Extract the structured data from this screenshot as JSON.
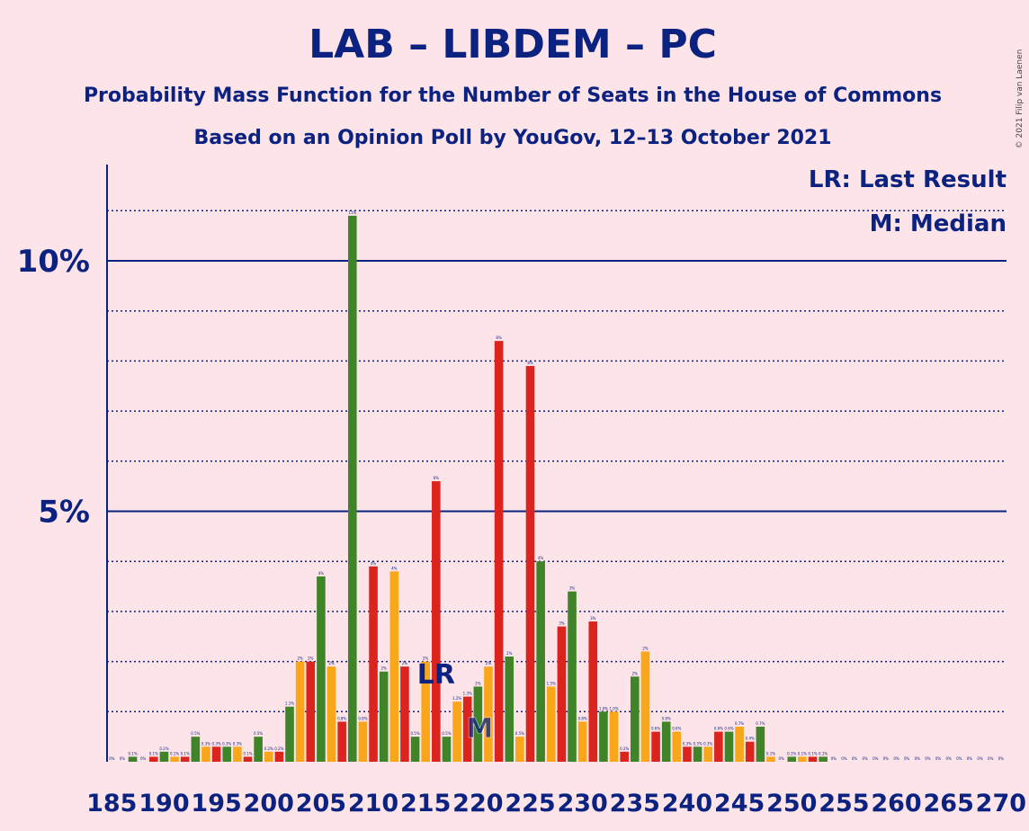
{
  "header": {
    "title": "LAB – LIBDEM – PC",
    "subtitle1": "Probability Mass Function for the Number of Seats in the House of Commons",
    "subtitle2": "Based on an Opinion Poll by YouGov, 12–13 October 2021",
    "credit": "© 2021 Filip van Laenen"
  },
  "legend": {
    "lr": "LR: Last Result",
    "m": "M: Median"
  },
  "colors": {
    "background": "#FDE4E8",
    "text": "#0C2280",
    "red": "#DC241F",
    "orange": "#FAA61A",
    "green": "#3F8428"
  },
  "chart_data": {
    "type": "bar",
    "x_start": 185,
    "ylim": [
      0,
      11.9
    ],
    "y_major_ticks": [
      5,
      10
    ],
    "y_major_labels": [
      "5%",
      "10%"
    ],
    "x_tick_labels": [
      "185",
      "190",
      "195",
      "200",
      "205",
      "210",
      "215",
      "220",
      "225",
      "230",
      "235",
      "240",
      "245",
      "250",
      "255",
      "260",
      "265",
      "270"
    ],
    "color_cycle": [
      "orange",
      "red",
      "green"
    ],
    "values": [
      0.0,
      0.0,
      0.1,
      0.0,
      0.1,
      0.2,
      0.1,
      0.1,
      0.5,
      0.3,
      0.3,
      0.3,
      0.3,
      0.1,
      0.5,
      0.2,
      0.2,
      1.1,
      2.0,
      2.0,
      3.7,
      1.9,
      0.8,
      10.9,
      0.8,
      3.9,
      1.8,
      3.8,
      1.9,
      0.5,
      2.0,
      5.6,
      0.5,
      1.2,
      1.3,
      1.5,
      1.9,
      8.4,
      2.1,
      0.5,
      7.9,
      4.0,
      1.5,
      2.7,
      3.4,
      0.8,
      2.8,
      1.0,
      1.0,
      0.2,
      1.7,
      2.2,
      0.6,
      0.8,
      0.6,
      0.3,
      0.3,
      0.3,
      0.6,
      0.6,
      0.7,
      0.4,
      0.7,
      0.1,
      0.0,
      0.1,
      0.1,
      0.1,
      0.1,
      0.0,
      0.0,
      0.0,
      0.0,
      0.0,
      0.0,
      0.0,
      0.0,
      0.0,
      0.0,
      0.0,
      0.0,
      0.0,
      0.0,
      0.0,
      0.0,
      0.0
    ],
    "labels": [
      "0%",
      "0%",
      "0.1%",
      "0%",
      "0.1%",
      "0.2%",
      "0.1%",
      "0.1%",
      "0.5%",
      "0.3%",
      "0.3%",
      "0.3%",
      "0.3%",
      "0.1%",
      "0.5%",
      "0.2%",
      "0.2%",
      "1.1%",
      "2%",
      "2%",
      "4%",
      "2%",
      "0.8%",
      "11%",
      "0.8%",
      "4%",
      "2%",
      "4%",
      "2%",
      "0.5%",
      "2%",
      "6%",
      "0.5%",
      "1.2%",
      "1.3%",
      "2%",
      "2%",
      "8%",
      "2%",
      "0.5%",
      "8%",
      "4%",
      "1.5%",
      "3%",
      "3%",
      "0.8%",
      "3%",
      "1.0%",
      "1.0%",
      "0.2%",
      "2%",
      "2%",
      "0.6%",
      "0.8%",
      "0.6%",
      "0.3%",
      "0.3%",
      "0.3%",
      "0.6%",
      "0.6%",
      "0.7%",
      "0.4%",
      "0.7%",
      "0.1%",
      "0%",
      "0.1%",
      "0.1%",
      "0.1%",
      "0.1%",
      "0%",
      "0%",
      "0%",
      "0%",
      "0%",
      "0%",
      "0%",
      "0%",
      "0%",
      "0%",
      "0%",
      "0%",
      "0%",
      "0%",
      "0%",
      "0%",
      "0%"
    ],
    "last_result_seat": 216,
    "last_result_label": "LR",
    "median_seat": 220,
    "median_label": "M"
  }
}
